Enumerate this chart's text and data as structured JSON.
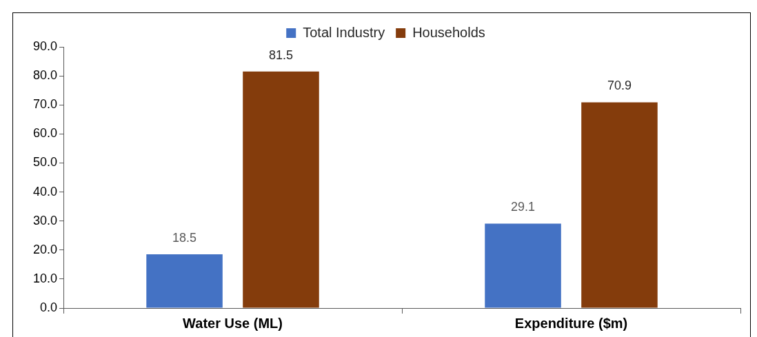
{
  "chart_data": {
    "type": "bar",
    "categories": [
      "Water Use (ML)",
      "Expenditure ($m)"
    ],
    "series": [
      {
        "name": "Total Industry",
        "color": "#4472c4",
        "values": [
          18.5,
          29.1
        ]
      },
      {
        "name": "Households",
        "color": "#843c0c",
        "values": [
          81.5,
          70.9
        ]
      }
    ],
    "ylim": [
      0,
      90
    ],
    "yticks": [
      "0.0",
      "10.0",
      "20.0",
      "30.0",
      "40.0",
      "50.0",
      "60.0",
      "70.0",
      "80.0",
      "90.0"
    ],
    "data_labels": true,
    "legend": "top",
    "grid": false
  }
}
